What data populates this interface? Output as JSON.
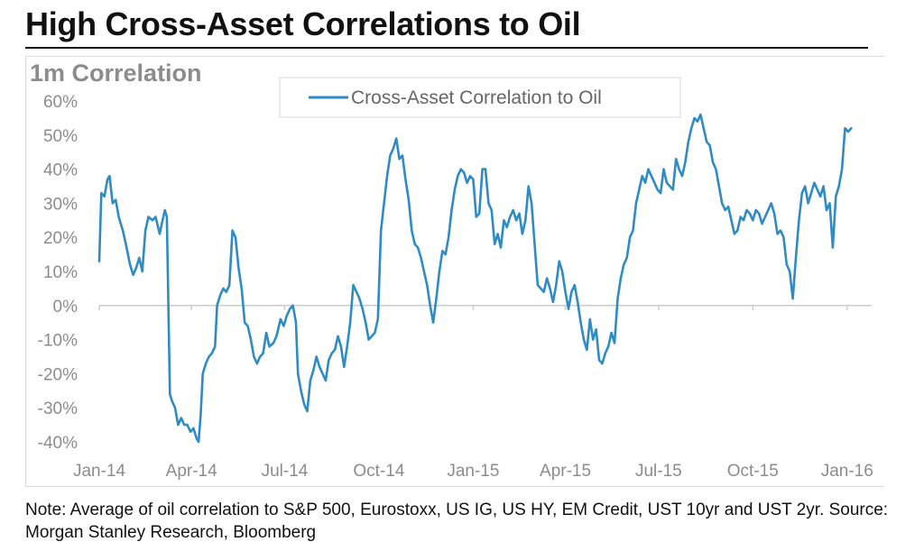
{
  "header": {
    "title": "High Cross-Asset Correlations to Oil"
  },
  "note": "Note: Average of oil correlation to S&P 500, Eurostoxx, US IG, US HY, EM Credit, UST 10yr and UST 2yr. Source: Morgan Stanley Research, Bloomberg",
  "colors": {
    "series": "#2f8bc3",
    "axis_text": "#8c8c8c",
    "axis_line": "#cccccc"
  },
  "chart_data": {
    "type": "line",
    "title": "",
    "ylabel": "1m Correlation",
    "xlabel": "",
    "ylim": [
      -40,
      60
    ],
    "yticks": [
      60,
      50,
      40,
      30,
      20,
      10,
      0,
      -10,
      -20,
      -30,
      -40
    ],
    "ytick_labels": [
      "60%",
      "50%",
      "40%",
      "30%",
      "20%",
      "10%",
      "0%",
      "-10%",
      "-20%",
      "-30%",
      "-40%"
    ],
    "xlim": [
      "2014-01-01",
      "2016-01-25"
    ],
    "xticks": [
      "2014-01-01",
      "2014-04-01",
      "2014-07-01",
      "2014-10-01",
      "2015-01-01",
      "2015-04-01",
      "2015-07-01",
      "2015-10-01",
      "2016-01-01"
    ],
    "xtick_labels": [
      "Jan-14",
      "Apr-14",
      "Jul-14",
      "Oct-14",
      "Jan-15",
      "Apr-15",
      "Jul-15",
      "Oct-15",
      "Jan-16"
    ],
    "legend": {
      "position": "top-center"
    },
    "grid": false,
    "series": [
      {
        "name": "Cross-Asset Correlation to Oil",
        "color": "#2f8bc3",
        "points": [
          [
            "2014-01-01",
            13
          ],
          [
            "2014-01-03",
            33
          ],
          [
            "2014-01-06",
            32
          ],
          [
            "2014-01-09",
            37
          ],
          [
            "2014-01-11",
            38
          ],
          [
            "2014-01-14",
            30
          ],
          [
            "2014-01-17",
            31
          ],
          [
            "2014-01-20",
            26
          ],
          [
            "2014-01-24",
            22
          ],
          [
            "2014-01-27",
            18
          ],
          [
            "2014-01-31",
            12
          ],
          [
            "2014-02-03",
            9
          ],
          [
            "2014-02-06",
            11
          ],
          [
            "2014-02-09",
            14
          ],
          [
            "2014-02-12",
            10
          ],
          [
            "2014-02-15",
            22
          ],
          [
            "2014-02-18",
            26
          ],
          [
            "2014-02-22",
            25
          ],
          [
            "2014-02-25",
            26
          ],
          [
            "2014-03-01",
            21
          ],
          [
            "2014-03-03",
            24
          ],
          [
            "2014-03-06",
            28
          ],
          [
            "2014-03-08",
            26
          ],
          [
            "2014-03-11",
            -26
          ],
          [
            "2014-03-13",
            -28
          ],
          [
            "2014-03-16",
            -30
          ],
          [
            "2014-03-19",
            -35
          ],
          [
            "2014-03-22",
            -33
          ],
          [
            "2014-03-25",
            -35
          ],
          [
            "2014-03-28",
            -35
          ],
          [
            "2014-03-31",
            -37
          ],
          [
            "2014-04-03",
            -36
          ],
          [
            "2014-04-06",
            -39
          ],
          [
            "2014-04-08",
            -40
          ],
          [
            "2014-04-10",
            -32
          ],
          [
            "2014-04-12",
            -20
          ],
          [
            "2014-04-15",
            -17
          ],
          [
            "2014-04-18",
            -15
          ],
          [
            "2014-04-21",
            -14
          ],
          [
            "2014-04-24",
            -12
          ],
          [
            "2014-04-26",
            0
          ],
          [
            "2014-04-29",
            3
          ],
          [
            "2014-05-02",
            5
          ],
          [
            "2014-05-05",
            4
          ],
          [
            "2014-05-08",
            6
          ],
          [
            "2014-05-11",
            22
          ],
          [
            "2014-05-14",
            20
          ],
          [
            "2014-05-17",
            11
          ],
          [
            "2014-05-20",
            5
          ],
          [
            "2014-05-23",
            -5
          ],
          [
            "2014-05-26",
            -6
          ],
          [
            "2014-05-29",
            -10
          ],
          [
            "2014-06-01",
            -15
          ],
          [
            "2014-06-04",
            -17
          ],
          [
            "2014-06-07",
            -15
          ],
          [
            "2014-06-10",
            -14
          ],
          [
            "2014-06-13",
            -8
          ],
          [
            "2014-06-16",
            -12
          ],
          [
            "2014-06-20",
            -11
          ],
          [
            "2014-06-23",
            -9
          ],
          [
            "2014-06-27",
            -4
          ],
          [
            "2014-06-30",
            -6
          ],
          [
            "2014-07-03",
            -3
          ],
          [
            "2014-07-06",
            -1
          ],
          [
            "2014-07-09",
            0
          ],
          [
            "2014-07-12",
            -5
          ],
          [
            "2014-07-14",
            -20
          ],
          [
            "2014-07-17",
            -25
          ],
          [
            "2014-07-20",
            -29
          ],
          [
            "2014-07-23",
            -31
          ],
          [
            "2014-07-26",
            -22
          ],
          [
            "2014-07-29",
            -19
          ],
          [
            "2014-08-01",
            -15
          ],
          [
            "2014-08-04",
            -18
          ],
          [
            "2014-08-07",
            -20
          ],
          [
            "2014-08-10",
            -22
          ],
          [
            "2014-08-13",
            -16
          ],
          [
            "2014-08-16",
            -14
          ],
          [
            "2014-08-19",
            -13
          ],
          [
            "2014-08-22",
            -9
          ],
          [
            "2014-08-25",
            -12
          ],
          [
            "2014-08-28",
            -18
          ],
          [
            "2014-08-31",
            -12
          ],
          [
            "2014-09-03",
            -5
          ],
          [
            "2014-09-06",
            6
          ],
          [
            "2014-09-09",
            4
          ],
          [
            "2014-09-12",
            2
          ],
          [
            "2014-09-15",
            -1
          ],
          [
            "2014-09-18",
            -5
          ],
          [
            "2014-09-21",
            -10
          ],
          [
            "2014-09-24",
            -9
          ],
          [
            "2014-09-27",
            -8
          ],
          [
            "2014-09-30",
            -4
          ],
          [
            "2014-10-03",
            22
          ],
          [
            "2014-10-06",
            30
          ],
          [
            "2014-10-09",
            38
          ],
          [
            "2014-10-12",
            44
          ],
          [
            "2014-10-15",
            46
          ],
          [
            "2014-10-18",
            49
          ],
          [
            "2014-10-21",
            43
          ],
          [
            "2014-10-24",
            44
          ],
          [
            "2014-10-27",
            37
          ],
          [
            "2014-10-30",
            31
          ],
          [
            "2014-11-02",
            22
          ],
          [
            "2014-11-05",
            18
          ],
          [
            "2014-11-08",
            17
          ],
          [
            "2014-11-11",
            14
          ],
          [
            "2014-11-14",
            10
          ],
          [
            "2014-11-17",
            6
          ],
          [
            "2014-11-20",
            0
          ],
          [
            "2014-11-23",
            -5
          ],
          [
            "2014-11-26",
            2
          ],
          [
            "2014-11-29",
            10
          ],
          [
            "2014-12-02",
            16
          ],
          [
            "2014-12-05",
            15
          ],
          [
            "2014-12-08",
            20
          ],
          [
            "2014-12-11",
            28
          ],
          [
            "2014-12-14",
            34
          ],
          [
            "2014-12-17",
            38
          ],
          [
            "2014-12-20",
            40
          ],
          [
            "2014-12-23",
            39
          ],
          [
            "2014-12-26",
            36
          ],
          [
            "2014-12-29",
            38
          ],
          [
            "2015-01-01",
            37
          ],
          [
            "2015-01-04",
            26
          ],
          [
            "2015-01-07",
            27
          ],
          [
            "2015-01-10",
            40
          ],
          [
            "2015-01-13",
            40
          ],
          [
            "2015-01-16",
            30
          ],
          [
            "2015-01-19",
            28
          ],
          [
            "2015-01-22",
            18
          ],
          [
            "2015-01-25",
            21
          ],
          [
            "2015-01-28",
            17
          ],
          [
            "2015-01-31",
            25
          ],
          [
            "2015-02-03",
            23
          ],
          [
            "2015-02-06",
            26
          ],
          [
            "2015-02-09",
            28
          ],
          [
            "2015-02-12",
            25
          ],
          [
            "2015-02-15",
            27
          ],
          [
            "2015-02-18",
            21
          ],
          [
            "2015-02-21",
            25
          ],
          [
            "2015-02-24",
            35
          ],
          [
            "2015-02-27",
            30
          ],
          [
            "2015-03-02",
            18
          ],
          [
            "2015-03-05",
            6
          ],
          [
            "2015-03-08",
            5
          ],
          [
            "2015-03-11",
            4
          ],
          [
            "2015-03-14",
            8
          ],
          [
            "2015-03-17",
            5
          ],
          [
            "2015-03-20",
            1
          ],
          [
            "2015-03-23",
            6
          ],
          [
            "2015-03-26",
            13
          ],
          [
            "2015-03-29",
            10
          ],
          [
            "2015-04-01",
            4
          ],
          [
            "2015-04-04",
            -1
          ],
          [
            "2015-04-07",
            4
          ],
          [
            "2015-04-10",
            6
          ],
          [
            "2015-04-13",
            1
          ],
          [
            "2015-04-16",
            -5
          ],
          [
            "2015-04-19",
            -10
          ],
          [
            "2015-04-22",
            -13
          ],
          [
            "2015-04-25",
            -4
          ],
          [
            "2015-04-28",
            -10
          ],
          [
            "2015-05-01",
            -7
          ],
          [
            "2015-05-04",
            -16
          ],
          [
            "2015-05-07",
            -17
          ],
          [
            "2015-05-10",
            -14
          ],
          [
            "2015-05-13",
            -12
          ],
          [
            "2015-05-16",
            -8
          ],
          [
            "2015-05-19",
            -11
          ],
          [
            "2015-05-22",
            2
          ],
          [
            "2015-05-25",
            8
          ],
          [
            "2015-05-28",
            12
          ],
          [
            "2015-05-31",
            14
          ],
          [
            "2015-06-03",
            20
          ],
          [
            "2015-06-06",
            22
          ],
          [
            "2015-06-09",
            30
          ],
          [
            "2015-06-12",
            34
          ],
          [
            "2015-06-15",
            38
          ],
          [
            "2015-06-18",
            36
          ],
          [
            "2015-06-21",
            40
          ],
          [
            "2015-06-24",
            38
          ],
          [
            "2015-06-27",
            36
          ],
          [
            "2015-06-30",
            34
          ],
          [
            "2015-07-03",
            33
          ],
          [
            "2015-07-06",
            40
          ],
          [
            "2015-07-09",
            36
          ],
          [
            "2015-07-12",
            35
          ],
          [
            "2015-07-15",
            34
          ],
          [
            "2015-07-18",
            43
          ],
          [
            "2015-07-21",
            40
          ],
          [
            "2015-07-24",
            38
          ],
          [
            "2015-07-27",
            42
          ],
          [
            "2015-07-30",
            48
          ],
          [
            "2015-08-02",
            52
          ],
          [
            "2015-08-05",
            55
          ],
          [
            "2015-08-08",
            54
          ],
          [
            "2015-08-11",
            56
          ],
          [
            "2015-08-14",
            52
          ],
          [
            "2015-08-17",
            48
          ],
          [
            "2015-08-20",
            47
          ],
          [
            "2015-08-23",
            42
          ],
          [
            "2015-08-26",
            40
          ],
          [
            "2015-08-29",
            35
          ],
          [
            "2015-09-01",
            30
          ],
          [
            "2015-09-04",
            28
          ],
          [
            "2015-09-07",
            29
          ],
          [
            "2015-09-10",
            25
          ],
          [
            "2015-09-13",
            21
          ],
          [
            "2015-09-16",
            22
          ],
          [
            "2015-09-19",
            26
          ],
          [
            "2015-09-22",
            25
          ],
          [
            "2015-09-25",
            28
          ],
          [
            "2015-09-28",
            27
          ],
          [
            "2015-10-01",
            25
          ],
          [
            "2015-10-04",
            28
          ],
          [
            "2015-10-07",
            27
          ],
          [
            "2015-10-10",
            24
          ],
          [
            "2015-10-13",
            26
          ],
          [
            "2015-10-16",
            28
          ],
          [
            "2015-10-19",
            30
          ],
          [
            "2015-10-22",
            27
          ],
          [
            "2015-10-25",
            21
          ],
          [
            "2015-10-28",
            22
          ],
          [
            "2015-10-31",
            20
          ],
          [
            "2015-11-03",
            12
          ],
          [
            "2015-11-06",
            10
          ],
          [
            "2015-11-09",
            2
          ],
          [
            "2015-11-12",
            14
          ],
          [
            "2015-11-15",
            25
          ],
          [
            "2015-11-18",
            33
          ],
          [
            "2015-11-21",
            35
          ],
          [
            "2015-11-24",
            30
          ],
          [
            "2015-11-27",
            33
          ],
          [
            "2015-11-30",
            36
          ],
          [
            "2015-12-03",
            34
          ],
          [
            "2015-12-06",
            32
          ],
          [
            "2015-12-09",
            35
          ],
          [
            "2015-12-12",
            28
          ],
          [
            "2015-12-15",
            30
          ],
          [
            "2015-12-18",
            17
          ],
          [
            "2015-12-21",
            32
          ],
          [
            "2015-12-24",
            35
          ],
          [
            "2015-12-27",
            40
          ],
          [
            "2015-12-30",
            52
          ],
          [
            "2016-01-02",
            51
          ],
          [
            "2016-01-05",
            52
          ]
        ]
      }
    ]
  }
}
